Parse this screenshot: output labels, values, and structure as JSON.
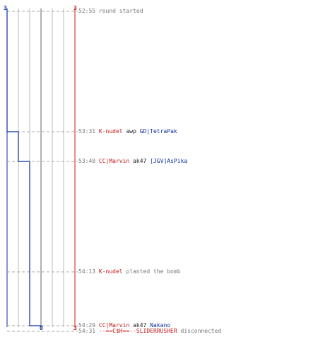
{
  "colors": {
    "ct": "#0b2d9f",
    "t": "#c41a1a",
    "grid": "#bbbbbb",
    "time": "#777777"
  },
  "scoreboard": {
    "ct_top": "3",
    "t_top": "3",
    "ct_bottom": "0",
    "t_bottom": "3"
  },
  "ct_alive_steps": [
    3,
    2,
    1,
    0
  ],
  "events": [
    {
      "time": "52:55",
      "parts": [
        {
          "text": "round started",
          "role": "msg"
        }
      ]
    },
    {
      "time": "53:31",
      "parts": [
        {
          "text": "K-nudel",
          "role": "t-team"
        },
        {
          "text": " awp ",
          "role": "wpn"
        },
        {
          "text": "GD|TetraPak",
          "role": "ct"
        }
      ]
    },
    {
      "time": "53:40",
      "parts": [
        {
          "text": "CC|Marvin",
          "role": "t-team"
        },
        {
          "text": " ak47 ",
          "role": "wpn"
        },
        {
          "text": "[JGV]AsPika",
          "role": "ct"
        }
      ]
    },
    {
      "time": "54:13",
      "parts": [
        {
          "text": "K-nudel",
          "role": "t-team"
        },
        {
          "text": " planted the bomb",
          "role": "msg"
        }
      ]
    },
    {
      "time": "54:29",
      "parts": [
        {
          "text": "CC|Marvin",
          "role": "t-team"
        },
        {
          "text": " ak47 ",
          "role": "wpn"
        },
        {
          "text": "Nakano",
          "role": "ct"
        }
      ]
    },
    {
      "time": "54:31",
      "parts": [
        {
          "text": "--==C$H==--SLIDERRUSHER",
          "role": "t-team"
        },
        {
          "text": " disconnected",
          "role": "msg"
        }
      ]
    }
  ]
}
